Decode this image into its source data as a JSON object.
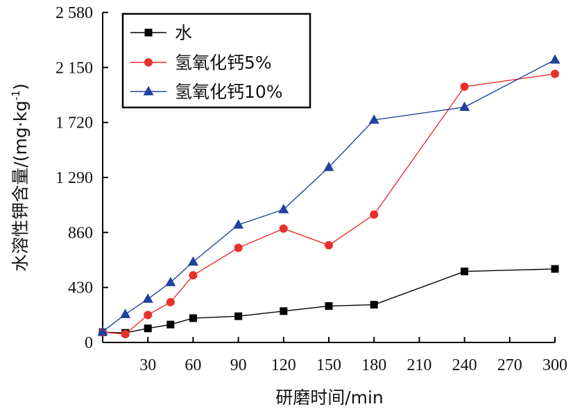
{
  "chart_data": {
    "type": "line",
    "xlabel": "研磨时间/min",
    "ylabel_main": "水溶性钾含量/(mg·kg",
    "ylabel_sup": "-1",
    "ylabel_close": ")",
    "xlim": [
      0,
      300
    ],
    "ylim": [
      0,
      2580
    ],
    "xticks": [
      30,
      60,
      90,
      120,
      150,
      180,
      210,
      240,
      270,
      300
    ],
    "yticks": [
      0,
      430,
      860,
      1290,
      1720,
      2150,
      2580
    ],
    "ytick_labels": [
      "0",
      "430",
      "860",
      "1 290",
      "1 720",
      "2 150",
      "2 580"
    ],
    "grid": false,
    "legend_position": "top-left",
    "series": [
      {
        "name": "水",
        "color": "#000000",
        "marker": "square",
        "x": [
          0,
          15,
          30,
          45,
          60,
          90,
          120,
          150,
          180,
          240,
          300
        ],
        "y": [
          80,
          75,
          110,
          140,
          190,
          205,
          245,
          285,
          295,
          555,
          575
        ]
      },
      {
        "name": "氢氧化钙5%",
        "color": "#e8302a",
        "marker": "circle",
        "x": [
          0,
          15,
          30,
          45,
          60,
          90,
          120,
          150,
          180,
          240,
          300
        ],
        "y": [
          80,
          65,
          215,
          315,
          525,
          740,
          890,
          760,
          1000,
          2000,
          2100
        ]
      },
      {
        "name": "氢氧化钙10%",
        "color": "#2140a0",
        "marker": "triangle",
        "x": [
          0,
          15,
          30,
          45,
          60,
          90,
          120,
          150,
          180,
          240,
          300
        ],
        "y": [
          85,
          220,
          340,
          470,
          630,
          920,
          1040,
          1370,
          1740,
          1840,
          2210
        ]
      }
    ]
  }
}
